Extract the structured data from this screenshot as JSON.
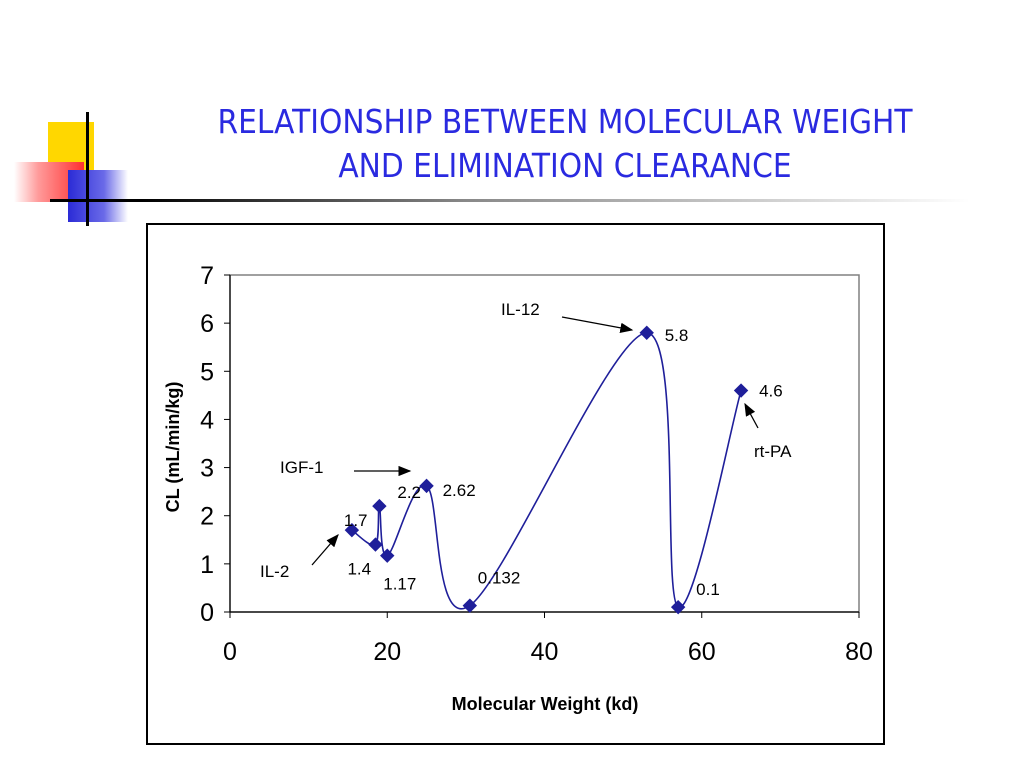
{
  "slide": {
    "title_line1": "RELATIONSHIP BETWEEN MOLECULAR WEIGHT",
    "title_line2": "AND ELIMINATION CLEARANCE"
  },
  "colors": {
    "title": "#2a2ae0",
    "series": "#1f1f9a",
    "deco_yellow": "#ffd700",
    "deco_red": "#ff3030",
    "deco_blue": "#2b2bd6"
  },
  "chart_data": {
    "type": "scatter",
    "xlabel": "Molecular Weight (kd)",
    "ylabel": "CL (mL/min/kg)",
    "xlim": [
      0,
      80
    ],
    "ylim": [
      0,
      7
    ],
    "x_ticks": [
      "0",
      "20",
      "40",
      "60",
      "80"
    ],
    "y_ticks": [
      "0",
      "1",
      "2",
      "3",
      "4",
      "5",
      "6",
      "7"
    ],
    "grid": false,
    "legend": "none",
    "series": [
      {
        "points": [
          {
            "x": 15.5,
            "y": 1.7,
            "label": "1.7"
          },
          {
            "x": 18.5,
            "y": 1.4,
            "label": "1.4"
          },
          {
            "x": 19.0,
            "y": 2.2,
            "label": "2.2"
          },
          {
            "x": 20.0,
            "y": 1.17,
            "label": "1.17"
          },
          {
            "x": 25.0,
            "y": 2.62,
            "label": "2.62"
          },
          {
            "x": 30.5,
            "y": 0.132,
            "label": "0.132"
          },
          {
            "x": 53.0,
            "y": 5.8,
            "label": "5.8"
          },
          {
            "x": 57.0,
            "y": 0.1,
            "label": "0.1"
          },
          {
            "x": 65.0,
            "y": 4.6,
            "label": "4.6"
          }
        ]
      }
    ],
    "annotations": [
      {
        "text": "IL-2"
      },
      {
        "text": "IGF-1"
      },
      {
        "text": "IL-12"
      },
      {
        "text": "rt-PA"
      }
    ]
  }
}
